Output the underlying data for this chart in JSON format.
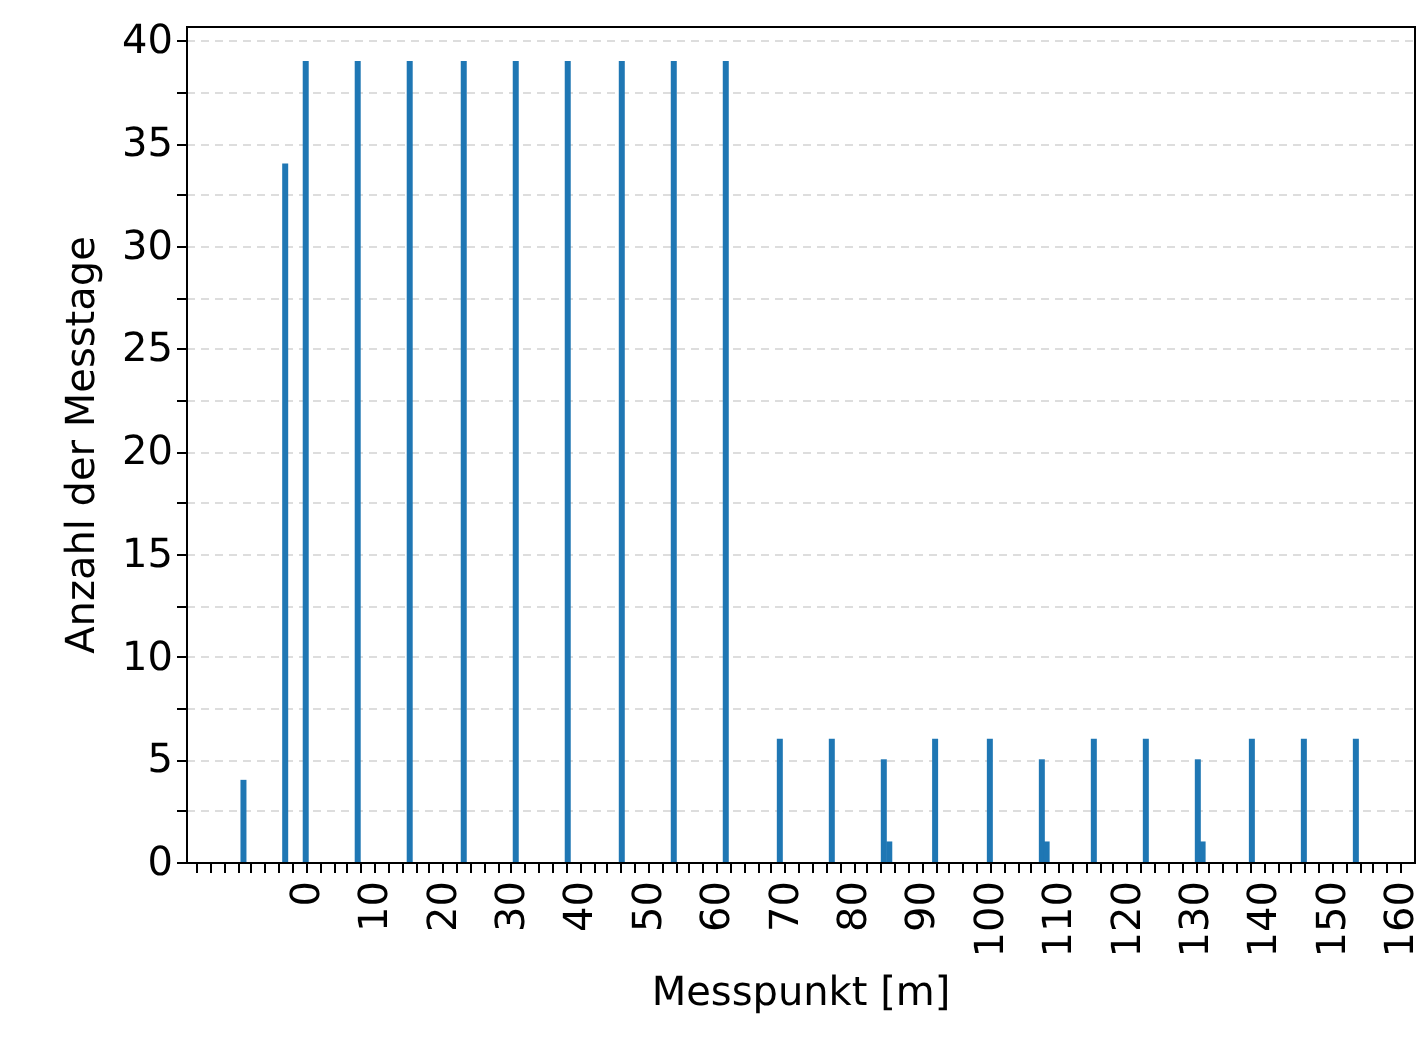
{
  "chart_data": {
    "type": "bar",
    "xlabel": "Messpunkt [m]",
    "ylabel": "Anzahl der Messtage",
    "x": [
      -9.1,
      -3,
      0,
      7.6,
      15.2,
      23.1,
      30.7,
      38.3,
      46.2,
      53.8,
      61.4,
      69.3,
      76.9,
      84.5,
      85.3,
      92,
      100,
      107.6,
      108.3,
      115.2,
      122.8,
      130.4,
      131.1,
      138.3,
      145.9,
      153.5
    ],
    "values": [
      4,
      34,
      39,
      39,
      39,
      39,
      39,
      39,
      39,
      39,
      39,
      6,
      6,
      5,
      1,
      6,
      6,
      5,
      1,
      6,
      6,
      5,
      1,
      6,
      6,
      6
    ],
    "color": "#1f77b4",
    "xlim": [
      -17.5,
      162
    ],
    "xticks": [
      {
        "value": -16,
        "label": null
      },
      {
        "value": -14,
        "label": null
      },
      {
        "value": -12,
        "label": null
      },
      {
        "value": -10,
        "label": null
      },
      {
        "value": -8,
        "label": null
      },
      {
        "value": -6,
        "label": null
      },
      {
        "value": -4,
        "label": null
      },
      {
        "value": -2,
        "label": null
      },
      0,
      {
        "value": 2,
        "label": null
      },
      {
        "value": 4,
        "label": null
      },
      {
        "value": 6,
        "label": null
      },
      {
        "value": 8,
        "label": null
      },
      10,
      {
        "value": 12,
        "label": null
      },
      {
        "value": 14,
        "label": null
      },
      {
        "value": 16,
        "label": null
      },
      {
        "value": 18,
        "label": null
      },
      20,
      {
        "value": 22,
        "label": null
      },
      {
        "value": 24,
        "label": null
      },
      {
        "value": 26,
        "label": null
      },
      {
        "value": 28,
        "label": null
      },
      30,
      {
        "value": 32,
        "label": null
      },
      {
        "value": 34,
        "label": null
      },
      {
        "value": 36,
        "label": null
      },
      {
        "value": 38,
        "label": null
      },
      40,
      {
        "value": 42,
        "label": null
      },
      {
        "value": 44,
        "label": null
      },
      {
        "value": 46,
        "label": null
      },
      {
        "value": 48,
        "label": null
      },
      50,
      {
        "value": 52,
        "label": null
      },
      {
        "value": 54,
        "label": null
      },
      {
        "value": 56,
        "label": null
      },
      {
        "value": 58,
        "label": null
      },
      60,
      {
        "value": 62,
        "label": null
      },
      {
        "value": 64,
        "label": null
      },
      {
        "value": 66,
        "label": null
      },
      {
        "value": 68,
        "label": null
      },
      70,
      {
        "value": 72,
        "label": null
      },
      {
        "value": 74,
        "label": null
      },
      {
        "value": 76,
        "label": null
      },
      {
        "value": 78,
        "label": null
      },
      80,
      {
        "value": 82,
        "label": null
      },
      {
        "value": 84,
        "label": null
      },
      {
        "value": 86,
        "label": null
      },
      {
        "value": 88,
        "label": null
      },
      90,
      {
        "value": 92,
        "label": null
      },
      {
        "value": 94,
        "label": null
      },
      {
        "value": 96,
        "label": null
      },
      {
        "value": 98,
        "label": null
      },
      100,
      {
        "value": 102,
        "label": null
      },
      {
        "value": 104,
        "label": null
      },
      {
        "value": 106,
        "label": null
      },
      {
        "value": 108,
        "label": null
      },
      110,
      {
        "value": 112,
        "label": null
      },
      {
        "value": 114,
        "label": null
      },
      {
        "value": 116,
        "label": null
      },
      {
        "value": 118,
        "label": null
      },
      120,
      {
        "value": 122,
        "label": null
      },
      {
        "value": 124,
        "label": null
      },
      {
        "value": 126,
        "label": null
      },
      {
        "value": 128,
        "label": null
      },
      130,
      {
        "value": 132,
        "label": null
      },
      {
        "value": 134,
        "label": null
      },
      {
        "value": 136,
        "label": null
      },
      {
        "value": 138,
        "label": null
      },
      140,
      {
        "value": 142,
        "label": null
      },
      {
        "value": 144,
        "label": null
      },
      {
        "value": 146,
        "label": null
      },
      {
        "value": 148,
        "label": null
      },
      150,
      {
        "value": 152,
        "label": null
      },
      {
        "value": 154,
        "label": null
      },
      {
        "value": 156,
        "label": null
      },
      {
        "value": 158,
        "label": null
      },
      160
    ],
    "ylim": [
      0,
      40.7
    ],
    "yticks": [
      0,
      {
        "value": 2.5,
        "label": null
      },
      5,
      {
        "value": 7.5,
        "label": null
      },
      10,
      {
        "value": 12.5,
        "label": null
      },
      15,
      {
        "value": 17.5,
        "label": null
      },
      20,
      {
        "value": 22.5,
        "label": null
      },
      25,
      {
        "value": 27.5,
        "label": null
      },
      30,
      {
        "value": 32.5,
        "label": null
      },
      35,
      {
        "value": 37.5,
        "label": null
      },
      40
    ],
    "grid": "y"
  }
}
